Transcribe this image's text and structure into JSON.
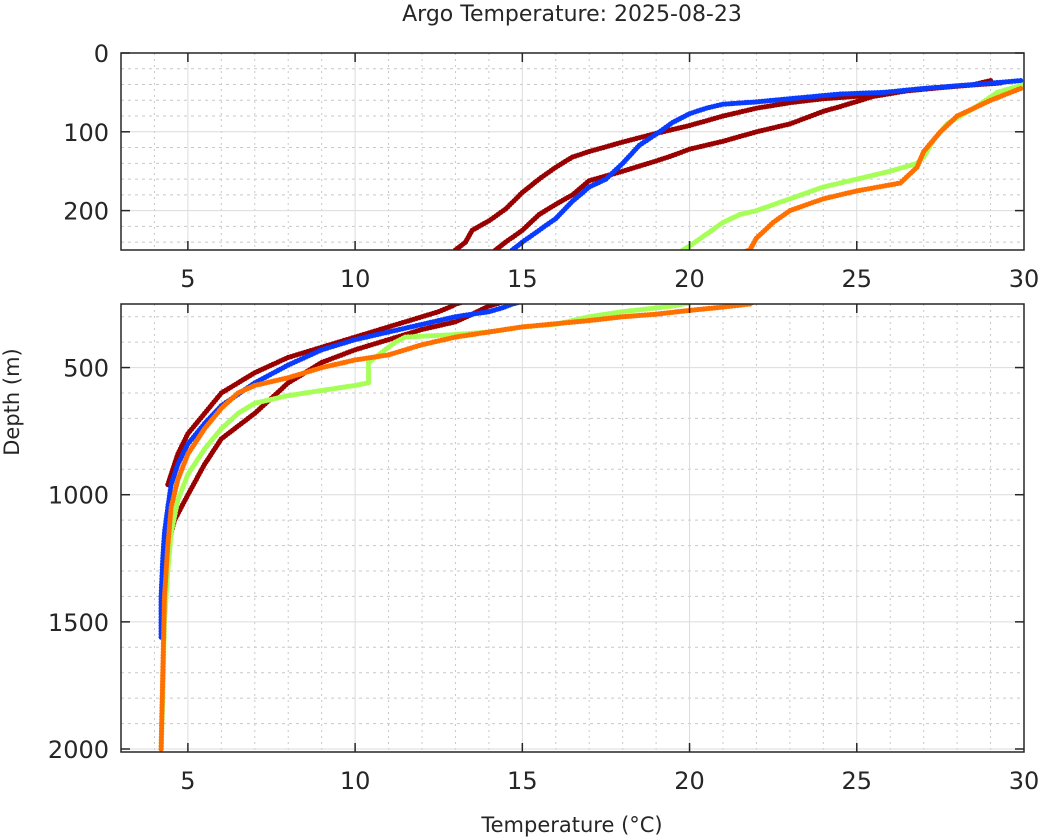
{
  "chart_data": {
    "type": "scatter",
    "title": "Argo Temperature: 2025-08-23",
    "xlabel": "Temperature (°C)",
    "ylabel": "Depth (m)",
    "grid": true,
    "y_reversed": true,
    "panels": [
      {
        "id": "upper",
        "xlim": [
          3,
          30
        ],
        "ylim": [
          0,
          250
        ],
        "x_ticks": [
          "5",
          "10",
          "15",
          "20",
          "25",
          "30"
        ],
        "x_tick_values": [
          5,
          10,
          15,
          20,
          25,
          30
        ],
        "y_ticks": [
          "0",
          "100",
          "200"
        ],
        "y_tick_values": [
          0,
          100,
          200
        ]
      },
      {
        "id": "lower",
        "xlim": [
          3,
          30
        ],
        "ylim": [
          250,
          2000
        ],
        "x_ticks": [
          "5",
          "10",
          "15",
          "20",
          "25",
          "30"
        ],
        "x_tick_values": [
          5,
          10,
          15,
          20,
          25,
          30
        ],
        "y_ticks": [
          "500",
          "1000",
          "1500",
          "2000"
        ],
        "y_tick_values": [
          500,
          1000,
          1500,
          2000
        ]
      }
    ],
    "series": [
      {
        "id": "profile-darkred-a",
        "color": "#990000",
        "points": [
          [
            29.3,
            38
          ],
          [
            28.0,
            42
          ],
          [
            27.0,
            45
          ],
          [
            26.0,
            50
          ],
          [
            25.0,
            55
          ],
          [
            24.0,
            58
          ],
          [
            23.0,
            63
          ],
          [
            22.0,
            70
          ],
          [
            21.0,
            80
          ],
          [
            20.0,
            92
          ],
          [
            19.0,
            102
          ],
          [
            18.0,
            113
          ],
          [
            17.0,
            125
          ],
          [
            16.5,
            132
          ],
          [
            16.0,
            145
          ],
          [
            15.5,
            160
          ],
          [
            15.0,
            177
          ],
          [
            14.5,
            198
          ],
          [
            14.0,
            213
          ],
          [
            13.5,
            225
          ],
          [
            13.3,
            240
          ],
          [
            13.0,
            250
          ],
          [
            12.9,
            258
          ],
          [
            12.5,
            280
          ],
          [
            12.0,
            300
          ],
          [
            11.0,
            340
          ],
          [
            10.0,
            380
          ],
          [
            9.0,
            420
          ],
          [
            8.0,
            460
          ],
          [
            7.0,
            520
          ],
          [
            6.0,
            600
          ],
          [
            5.5,
            680
          ],
          [
            5.0,
            760
          ],
          [
            4.7,
            840
          ],
          [
            4.5,
            920
          ],
          [
            4.4,
            960
          ]
        ]
      },
      {
        "id": "profile-darkred-b",
        "color": "#990000",
        "points": [
          [
            29.0,
            35
          ],
          [
            28.5,
            40
          ],
          [
            27.5,
            44
          ],
          [
            26.5,
            48
          ],
          [
            25.5,
            55
          ],
          [
            24.5,
            68
          ],
          [
            24.0,
            74
          ],
          [
            23.0,
            90
          ],
          [
            22.0,
            100
          ],
          [
            21.0,
            112
          ],
          [
            20.0,
            122
          ],
          [
            19.5,
            130
          ],
          [
            19.0,
            137
          ],
          [
            18.0,
            150
          ],
          [
            17.0,
            162
          ],
          [
            16.5,
            180
          ],
          [
            16.0,
            192
          ],
          [
            15.5,
            205
          ],
          [
            15.0,
            225
          ],
          [
            14.5,
            240
          ],
          [
            14.2,
            250
          ],
          [
            14.0,
            258
          ],
          [
            13.5,
            290
          ],
          [
            13.0,
            320
          ],
          [
            12.0,
            350
          ],
          [
            11.0,
            390
          ],
          [
            10.0,
            430
          ],
          [
            9.0,
            480
          ],
          [
            8.0,
            560
          ],
          [
            7.5,
            620
          ],
          [
            7.0,
            680
          ],
          [
            6.0,
            780
          ],
          [
            5.5,
            880
          ],
          [
            5.0,
            1000
          ],
          [
            4.6,
            1100
          ],
          [
            4.4,
            1200
          ],
          [
            4.3,
            1300
          ],
          [
            4.25,
            1400
          ]
        ]
      },
      {
        "id": "profile-blue",
        "color": "#0a3cff",
        "points": [
          [
            29.9,
            35
          ],
          [
            28.5,
            40
          ],
          [
            27.0,
            45
          ],
          [
            25.8,
            50
          ],
          [
            24.5,
            52
          ],
          [
            23.0,
            58
          ],
          [
            22.0,
            62
          ],
          [
            21.0,
            65
          ],
          [
            20.5,
            70
          ],
          [
            20.0,
            77
          ],
          [
            19.5,
            88
          ],
          [
            19.0,
            103
          ],
          [
            18.5,
            117
          ],
          [
            18.0,
            140
          ],
          [
            17.5,
            160
          ],
          [
            17.0,
            170
          ],
          [
            16.5,
            188
          ],
          [
            16.0,
            210
          ],
          [
            15.5,
            225
          ],
          [
            15.0,
            240
          ],
          [
            14.7,
            250
          ],
          [
            14.4,
            265
          ],
          [
            14.0,
            280
          ],
          [
            13.0,
            300
          ],
          [
            12.0,
            330
          ],
          [
            11.0,
            360
          ],
          [
            10.0,
            390
          ],
          [
            9.0,
            430
          ],
          [
            8.0,
            490
          ],
          [
            7.0,
            560
          ],
          [
            6.0,
            650
          ],
          [
            5.5,
            720
          ],
          [
            5.0,
            800
          ],
          [
            4.7,
            880
          ],
          [
            4.5,
            960
          ],
          [
            4.4,
            1050
          ],
          [
            4.3,
            1150
          ],
          [
            4.25,
            1250
          ],
          [
            4.2,
            1400
          ],
          [
            4.2,
            1560
          ]
        ]
      },
      {
        "id": "profile-green",
        "color": "#a5ff57",
        "points": [
          [
            30.0,
            40
          ],
          [
            29.2,
            50
          ],
          [
            28.5,
            70
          ],
          [
            27.7,
            90
          ],
          [
            27.3,
            110
          ],
          [
            27.0,
            132
          ],
          [
            26.8,
            140
          ],
          [
            26.0,
            150
          ],
          [
            25.0,
            160
          ],
          [
            24.0,
            170
          ],
          [
            23.0,
            185
          ],
          [
            22.0,
            200
          ],
          [
            21.5,
            205
          ],
          [
            21.0,
            215
          ],
          [
            20.5,
            230
          ],
          [
            20.0,
            245
          ],
          [
            19.8,
            250
          ],
          [
            19.5,
            258
          ],
          [
            18.0,
            280
          ],
          [
            17.0,
            300
          ],
          [
            16.0,
            330
          ],
          [
            15.0,
            340
          ],
          [
            14.0,
            360
          ],
          [
            13.0,
            370
          ],
          [
            11.5,
            380
          ],
          [
            11.2,
            400
          ],
          [
            10.8,
            440
          ],
          [
            10.5,
            470
          ],
          [
            10.4,
            480
          ],
          [
            10.4,
            560
          ],
          [
            10.0,
            570
          ],
          [
            9.0,
            590
          ],
          [
            8.0,
            610
          ],
          [
            7.0,
            640
          ],
          [
            6.5,
            680
          ],
          [
            6.0,
            740
          ],
          [
            5.5,
            820
          ],
          [
            5.0,
            920
          ],
          [
            4.7,
            1020
          ],
          [
            4.5,
            1150
          ],
          [
            4.4,
            1300
          ],
          [
            4.3,
            1500
          ],
          [
            4.25,
            1800
          ],
          [
            4.2,
            2000
          ]
        ]
      },
      {
        "id": "profile-orange",
        "color": "#ff7000",
        "points": [
          [
            29.9,
            45
          ],
          [
            29.0,
            60
          ],
          [
            28.0,
            80
          ],
          [
            27.5,
            100
          ],
          [
            27.0,
            125
          ],
          [
            26.8,
            145
          ],
          [
            26.3,
            165
          ],
          [
            25.0,
            175
          ],
          [
            24.0,
            185
          ],
          [
            23.0,
            200
          ],
          [
            22.5,
            215
          ],
          [
            22.0,
            235
          ],
          [
            21.8,
            250
          ],
          [
            21.0,
            262
          ],
          [
            20.0,
            275
          ],
          [
            19.0,
            290
          ],
          [
            18.0,
            300
          ],
          [
            17.0,
            315
          ],
          [
            15.0,
            340
          ],
          [
            14.0,
            360
          ],
          [
            13.0,
            380
          ],
          [
            12.0,
            410
          ],
          [
            11.0,
            450
          ],
          [
            10.0,
            470
          ],
          [
            9.0,
            500
          ],
          [
            8.0,
            540
          ],
          [
            7.0,
            570
          ],
          [
            6.5,
            600
          ],
          [
            6.0,
            660
          ],
          [
            5.5,
            740
          ],
          [
            5.0,
            840
          ],
          [
            4.7,
            940
          ],
          [
            4.5,
            1050
          ],
          [
            4.4,
            1200
          ],
          [
            4.3,
            1400
          ],
          [
            4.25,
            1700
          ],
          [
            4.2,
            2000
          ]
        ]
      }
    ]
  }
}
